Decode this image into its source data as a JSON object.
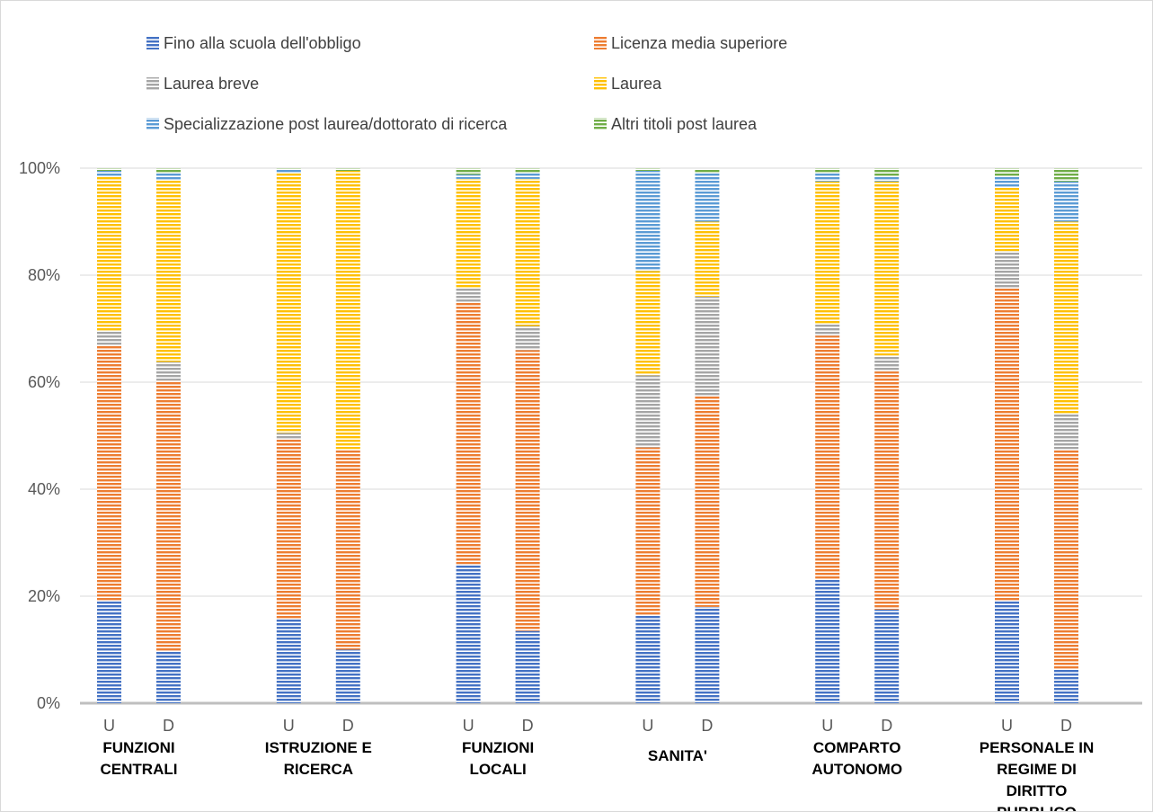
{
  "chart_data": {
    "type": "bar",
    "stacked": true,
    "percent_stacked": true,
    "title": "",
    "xlabel": "",
    "ylabel": "",
    "ylim": [
      0,
      100
    ],
    "y_ticks": [
      "0%",
      "20%",
      "40%",
      "60%",
      "80%",
      "100%"
    ],
    "grid": "horizontal",
    "legend_position": "top",
    "groups": [
      {
        "label": "FUNZIONI CENTRALI",
        "bars": [
          "U",
          "D"
        ]
      },
      {
        "label": "ISTRUZIONE E RICERCA",
        "bars": [
          "U",
          "D"
        ]
      },
      {
        "label": "FUNZIONI LOCALI",
        "bars": [
          "U",
          "D"
        ]
      },
      {
        "label": "SANITA'",
        "bars": [
          "U",
          "D"
        ]
      },
      {
        "label": "COMPARTO AUTONOMO",
        "bars": [
          "U",
          "D"
        ]
      },
      {
        "label": "PERSONALE IN REGIME DI DIRITTO PUBBLICO",
        "bars": [
          "U",
          "D"
        ]
      }
    ],
    "series": [
      {
        "name": "Fino alla scuola dell'obbligo",
        "color": "#4472c4",
        "values": [
          19.0,
          9.8,
          15.8,
          10.0,
          26.0,
          13.5,
          16.5,
          18.0,
          23.2,
          17.5,
          19.2,
          6.3
        ]
      },
      {
        "name": "Licenza media superiore",
        "color": "#ed7d31",
        "values": [
          48.0,
          50.5,
          33.7,
          37.5,
          49.0,
          52.5,
          31.3,
          39.5,
          45.5,
          44.5,
          58.3,
          41.2
        ]
      },
      {
        "name": "Laurea breve",
        "color": "#a5a5a5",
        "values": [
          2.5,
          3.5,
          1.0,
          0.0,
          2.5,
          4.5,
          13.5,
          18.5,
          2.3,
          3.0,
          7.0,
          6.5
        ]
      },
      {
        "name": "Laurea",
        "color": "#ffc000",
        "values": [
          29.0,
          34.0,
          48.5,
          52.0,
          20.5,
          27.5,
          19.5,
          14.0,
          26.5,
          32.5,
          12.0,
          36.0
        ]
      },
      {
        "name": "Specializzazione post laurea/dottorato di ricerca",
        "color": "#5b9bd5",
        "values": [
          1.0,
          1.2,
          0.7,
          0.0,
          0.8,
          1.0,
          18.7,
          9.0,
          1.5,
          1.0,
          2.0,
          7.5
        ]
      },
      {
        "name": "Altri titoli post laurea",
        "color": "#70ad47",
        "values": [
          0.5,
          1.0,
          0.3,
          0.5,
          1.2,
          1.0,
          0.5,
          0.8,
          1.0,
          1.5,
          1.5,
          2.5
        ]
      }
    ]
  }
}
